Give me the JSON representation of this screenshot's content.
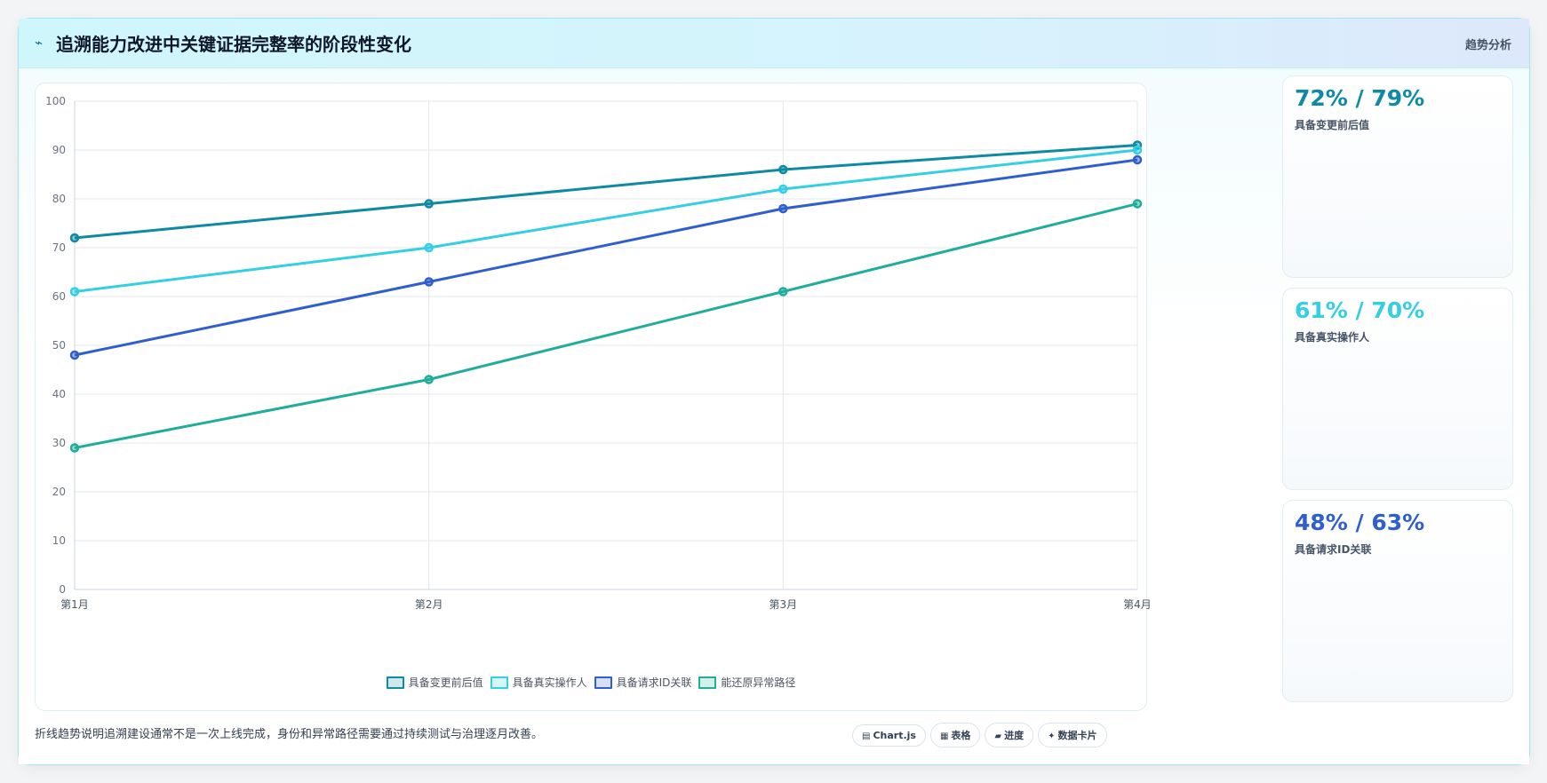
{
  "header": {
    "icon": "lightning-icon",
    "icon_glyph": "⌁",
    "title": "追溯能力改进中关键证据完整率的阶段性变化",
    "right_label": "趋势分析"
  },
  "chart_data": {
    "type": "line",
    "categories": [
      "第1月",
      "第2月",
      "第3月",
      "第4月"
    ],
    "ylim": [
      0,
      100
    ],
    "yticks": [
      0,
      10,
      20,
      30,
      40,
      50,
      60,
      70,
      80,
      90,
      100
    ],
    "grid": true,
    "legend_position": "bottom",
    "series": [
      {
        "name": "具备变更前后值",
        "values": [
          72,
          79,
          86,
          91
        ],
        "color": "#0e8aa3"
      },
      {
        "name": "具备真实操作人",
        "values": [
          61,
          70,
          82,
          90
        ],
        "color": "#34cfe3"
      },
      {
        "name": "具备请求ID关联",
        "values": [
          48,
          63,
          78,
          88
        ],
        "color": "#2f5fcf"
      },
      {
        "name": "能还原异常路径",
        "values": [
          29,
          43,
          61,
          79
        ],
        "color": "#20ad9c"
      }
    ]
  },
  "side_cards": [
    {
      "value": "72% / 79%",
      "label": "具备变更前后值",
      "color": "#0e8aa3"
    },
    {
      "value": "61% / 70%",
      "label": "具备真实操作人",
      "color": "#34cfe3"
    },
    {
      "value": "48% / 63%",
      "label": "具备请求ID关联",
      "color": "#2f5fcf"
    }
  ],
  "footer": {
    "text": "折线趋势说明追溯建设通常不是一次上线完成，身份和异常路径需要通过持续测试与治理逐月改善。",
    "pills": [
      {
        "icon": "chart-icon",
        "glyph": "▤",
        "label": "Chart.js"
      },
      {
        "icon": "table-icon",
        "glyph": "▦",
        "label": "表格"
      },
      {
        "icon": "progress-icon",
        "glyph": "▰",
        "label": "进度"
      },
      {
        "icon": "sparkle-icon",
        "glyph": "✦",
        "label": "数据卡片"
      }
    ]
  }
}
